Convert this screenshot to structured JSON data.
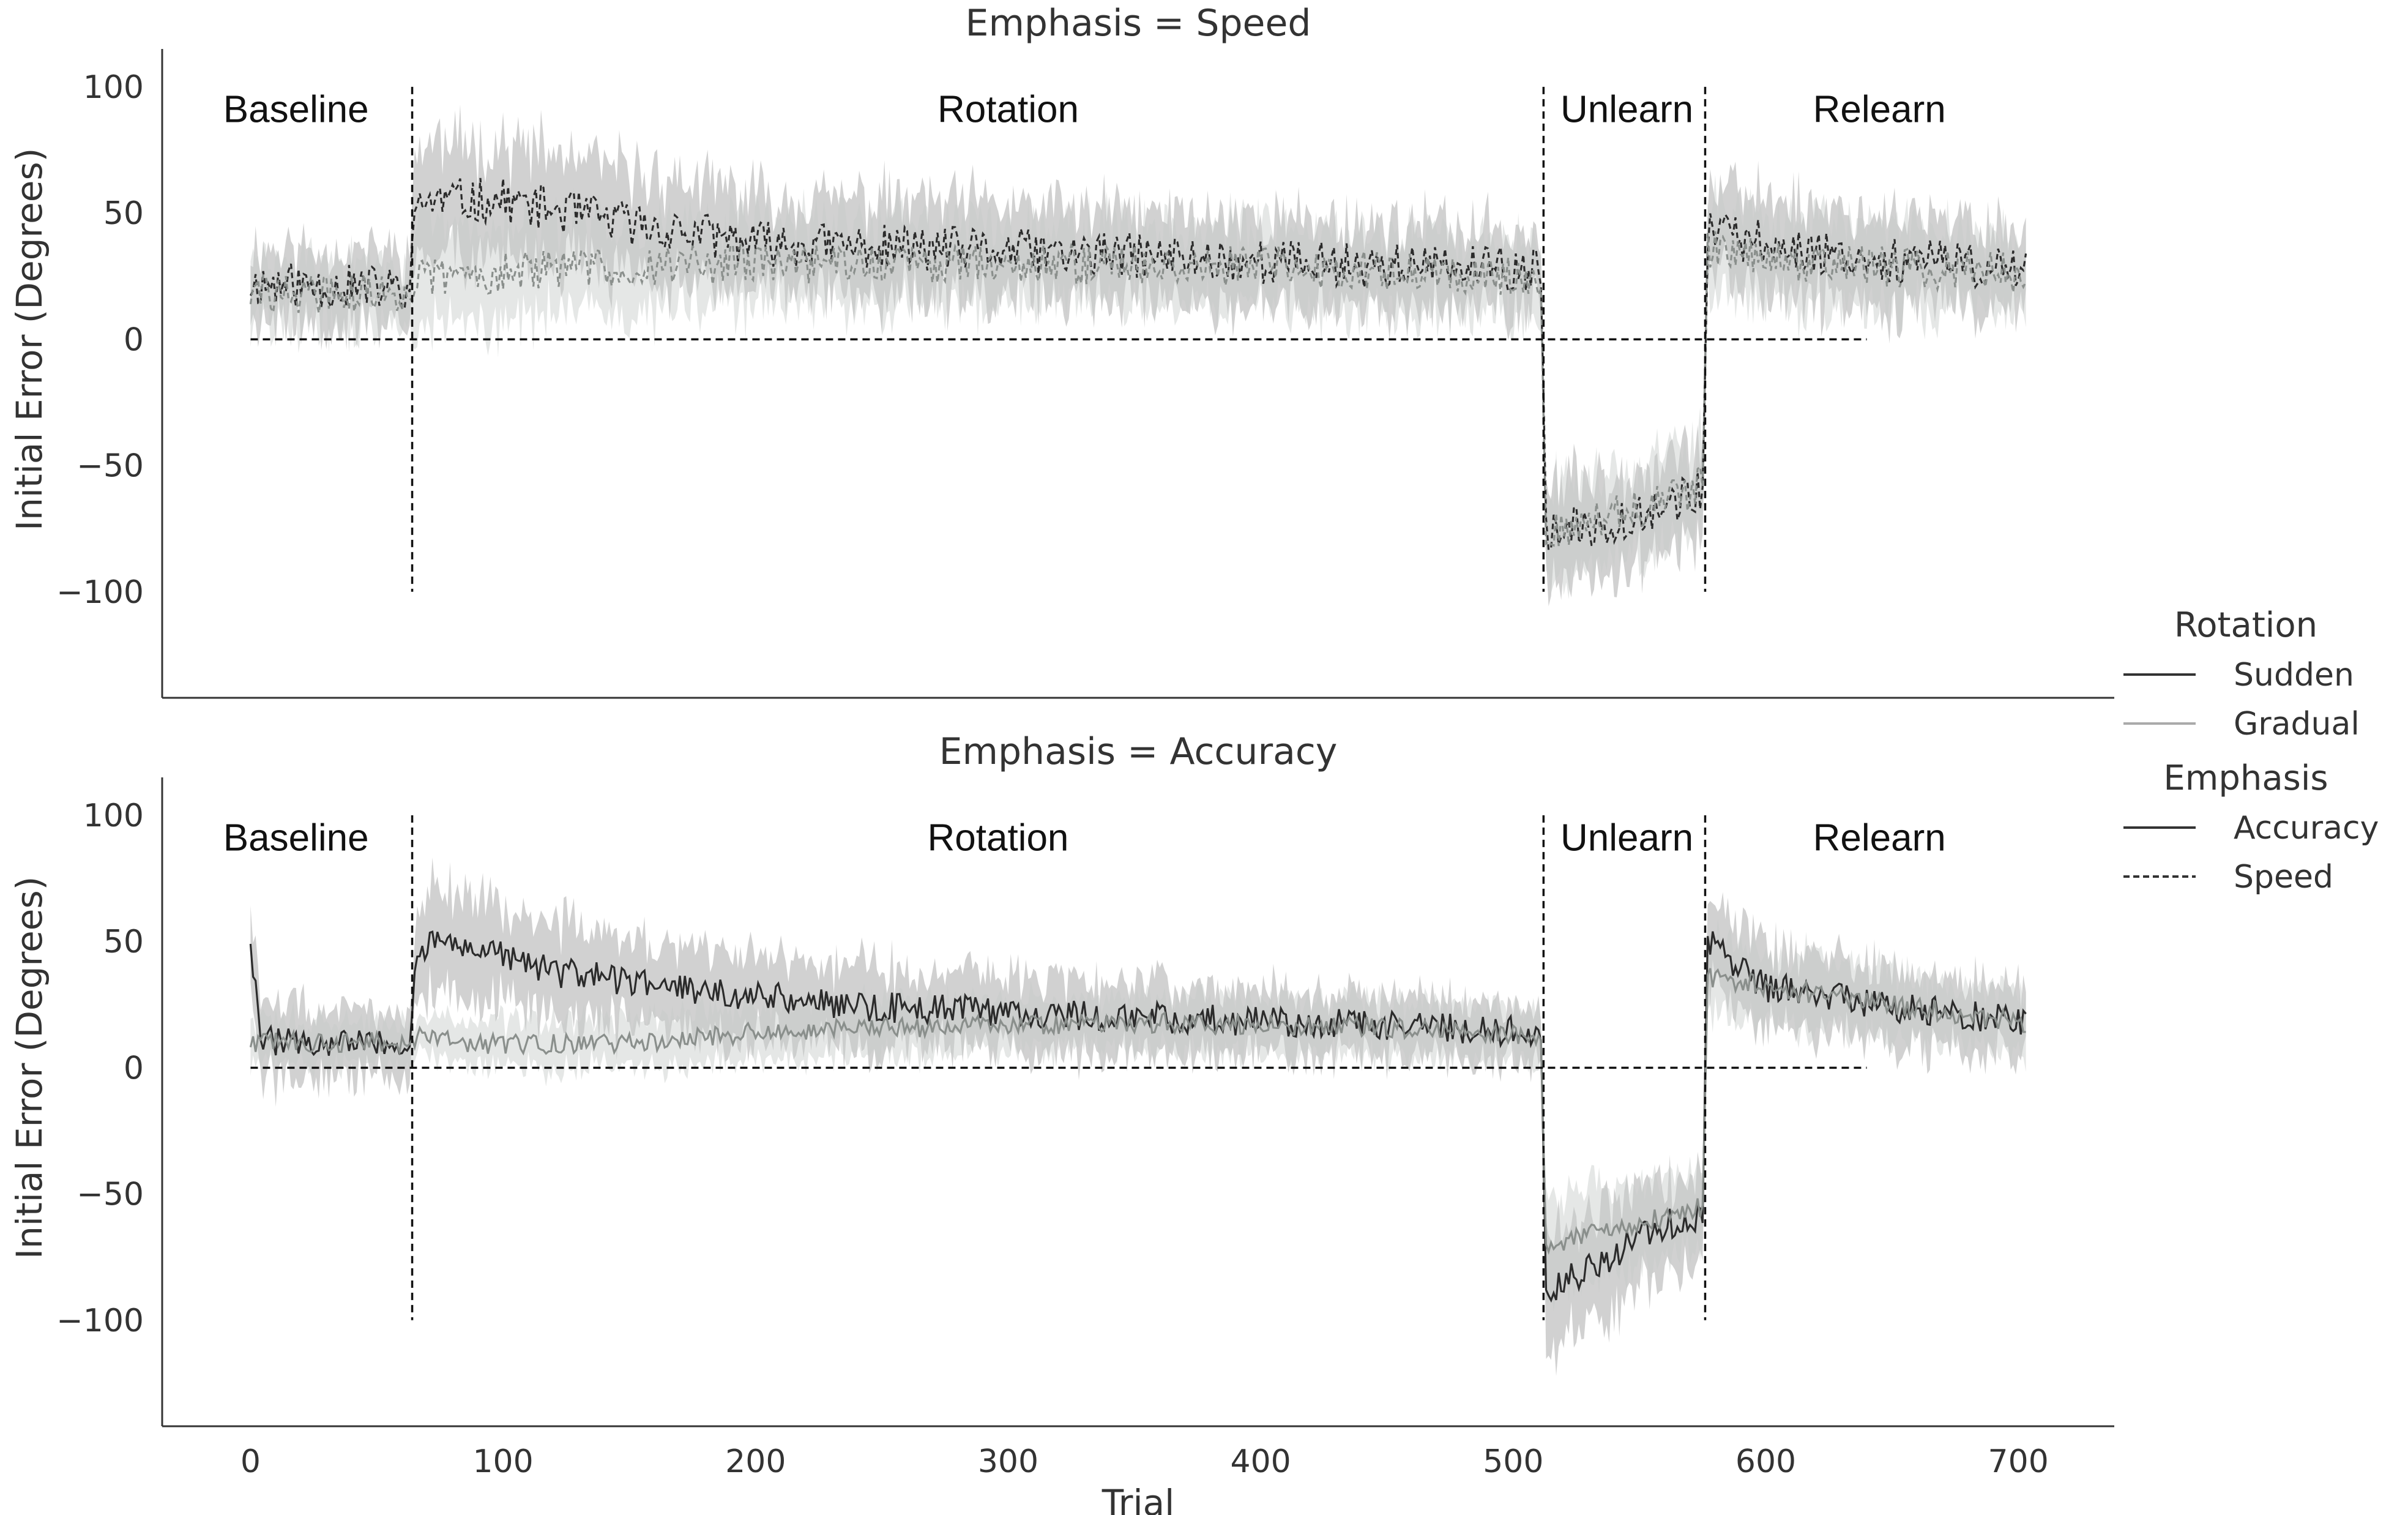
{
  "chart_data": {
    "type": "line",
    "x_label": "Trial",
    "x_ticks": [
      0,
      100,
      200,
      300,
      400,
      500,
      600,
      700
    ],
    "x_range": [
      -35,
      738
    ],
    "y_label": "Initial Error (Degrees)",
    "y_ticks": [
      100,
      50,
      0,
      -50,
      -100
    ],
    "y_tick_labels": [
      "100",
      "50",
      "0",
      "−50",
      "−100"
    ],
    "y_range": [
      -142,
      115
    ],
    "grid": false,
    "legend_position": "right",
    "legend": {
      "groups": [
        {
          "title": "Rotation",
          "items": [
            {
              "label": "Sudden",
              "color": "#333333",
              "dash": "solid"
            },
            {
              "label": "Gradual",
              "color": "#aaaaaa",
              "dash": "solid"
            }
          ]
        },
        {
          "title": "Emphasis",
          "items": [
            {
              "label": "Accuracy",
              "color": "#333333",
              "dash": "solid"
            },
            {
              "label": "Speed",
              "color": "#333333",
              "dash": "dashed"
            }
          ]
        }
      ]
    },
    "phase_boundaries_trials": [
      64,
      512,
      576
    ],
    "boundary_y_range": [
      -100,
      100
    ],
    "zero_line_trial_range": [
      0,
      640
    ],
    "colors": {
      "sudden_line": "#2b2b2b",
      "gradual_line": "#8a8f8c",
      "sudden_band": "#9a9a9a",
      "gradual_band": "#c5cac7"
    },
    "panels": [
      {
        "title": "Emphasis = Speed",
        "emphasis": "Speed",
        "phase_labels": [
          {
            "text": "Baseline",
            "trial": 18
          },
          {
            "text": "Rotation",
            "trial": 300
          },
          {
            "text": "Unlearn",
            "trial": 545
          },
          {
            "text": "Relearn",
            "trial": 645
          }
        ],
        "series": [
          {
            "name": "Sudden",
            "dash": "dashed",
            "line_color": "#2b2b2b",
            "band_color": "#9a9a9a",
            "knots": [
              [
                0,
                22
              ],
              [
                63,
                20
              ],
              [
                66,
                55
              ],
              [
                100,
                55
              ],
              [
                150,
                46
              ],
              [
                200,
                38
              ],
              [
                300,
                35
              ],
              [
                400,
                31
              ],
              [
                511,
                27
              ],
              [
                513,
                -78
              ],
              [
                540,
                -72
              ],
              [
                575,
                -60
              ],
              [
                577,
                42
              ],
              [
                600,
                38
              ],
              [
                640,
                32
              ],
              [
                703,
                28
              ]
            ],
            "band_halfwidth": [
              [
                0,
                14
              ],
              [
                63,
                14
              ],
              [
                66,
                22
              ],
              [
                200,
                18
              ],
              [
                511,
                15
              ],
              [
                513,
                18
              ],
              [
                575,
                16
              ],
              [
                577,
                18
              ],
              [
                703,
                15
              ]
            ],
            "noise": 9,
            "seed": 11
          },
          {
            "name": "Gradual",
            "dash": "dashed",
            "line_color": "#8a8f8c",
            "band_color": "#c5cac7",
            "knots": [
              [
                0,
                18
              ],
              [
                63,
                18
              ],
              [
                66,
                24
              ],
              [
                120,
                28
              ],
              [
                200,
                30
              ],
              [
                300,
                30
              ],
              [
                400,
                29
              ],
              [
                511,
                25
              ],
              [
                513,
                -76
              ],
              [
                540,
                -70
              ],
              [
                575,
                -58
              ],
              [
                577,
                36
              ],
              [
                620,
                30
              ],
              [
                703,
                26
              ]
            ],
            "band_halfwidth": [
              [
                0,
                12
              ],
              [
                63,
                12
              ],
              [
                66,
                18
              ],
              [
                200,
                16
              ],
              [
                511,
                14
              ],
              [
                513,
                18
              ],
              [
                575,
                16
              ],
              [
                577,
                16
              ],
              [
                703,
                14
              ]
            ],
            "noise": 8,
            "seed": 29
          }
        ]
      },
      {
        "title": "Emphasis = Accuracy",
        "emphasis": "Accuracy",
        "phase_labels": [
          {
            "text": "Baseline",
            "trial": 18
          },
          {
            "text": "Rotation",
            "trial": 296
          },
          {
            "text": "Unlearn",
            "trial": 545
          },
          {
            "text": "Relearn",
            "trial": 645
          }
        ],
        "series": [
          {
            "name": "Sudden",
            "dash": "solid",
            "line_color": "#2b2b2b",
            "band_color": "#9a9a9a",
            "knots": [
              [
                0,
                52
              ],
              [
                4,
                12
              ],
              [
                20,
                9
              ],
              [
                63,
                10
              ],
              [
                66,
                48
              ],
              [
                80,
                50
              ],
              [
                120,
                38
              ],
              [
                180,
                30
              ],
              [
                250,
                24
              ],
              [
                350,
                20
              ],
              [
                450,
                17
              ],
              [
                511,
                14
              ],
              [
                513,
                -88
              ],
              [
                530,
                -80
              ],
              [
                560,
                -62
              ],
              [
                575,
                -60
              ],
              [
                577,
                50
              ],
              [
                600,
                32
              ],
              [
                650,
                24
              ],
              [
                703,
                18
              ]
            ],
            "band_halfwidth": [
              [
                0,
                14
              ],
              [
                63,
                12
              ],
              [
                66,
                20
              ],
              [
                200,
                16
              ],
              [
                511,
                10
              ],
              [
                513,
                22
              ],
              [
                575,
                16
              ],
              [
                577,
                16
              ],
              [
                703,
                12
              ]
            ],
            "noise": 6,
            "seed": 47
          },
          {
            "name": "Gradual",
            "dash": "solid",
            "line_color": "#8a8f8c",
            "band_color": "#c5cac7",
            "knots": [
              [
                0,
                10
              ],
              [
                63,
                10
              ],
              [
                66,
                12
              ],
              [
                100,
                9
              ],
              [
                160,
                10
              ],
              [
                200,
                14
              ],
              [
                260,
                16
              ],
              [
                350,
                18
              ],
              [
                450,
                16
              ],
              [
                511,
                13
              ],
              [
                513,
                -70
              ],
              [
                540,
                -64
              ],
              [
                575,
                -55
              ],
              [
                577,
                36
              ],
              [
                640,
                26
              ],
              [
                703,
                18
              ]
            ],
            "band_halfwidth": [
              [
                0,
                8
              ],
              [
                63,
                8
              ],
              [
                66,
                8
              ],
              [
                200,
                10
              ],
              [
                511,
                10
              ],
              [
                513,
                18
              ],
              [
                575,
                14
              ],
              [
                577,
                14
              ],
              [
                703,
                12
              ]
            ],
            "noise": 4,
            "seed": 73
          }
        ]
      }
    ]
  }
}
